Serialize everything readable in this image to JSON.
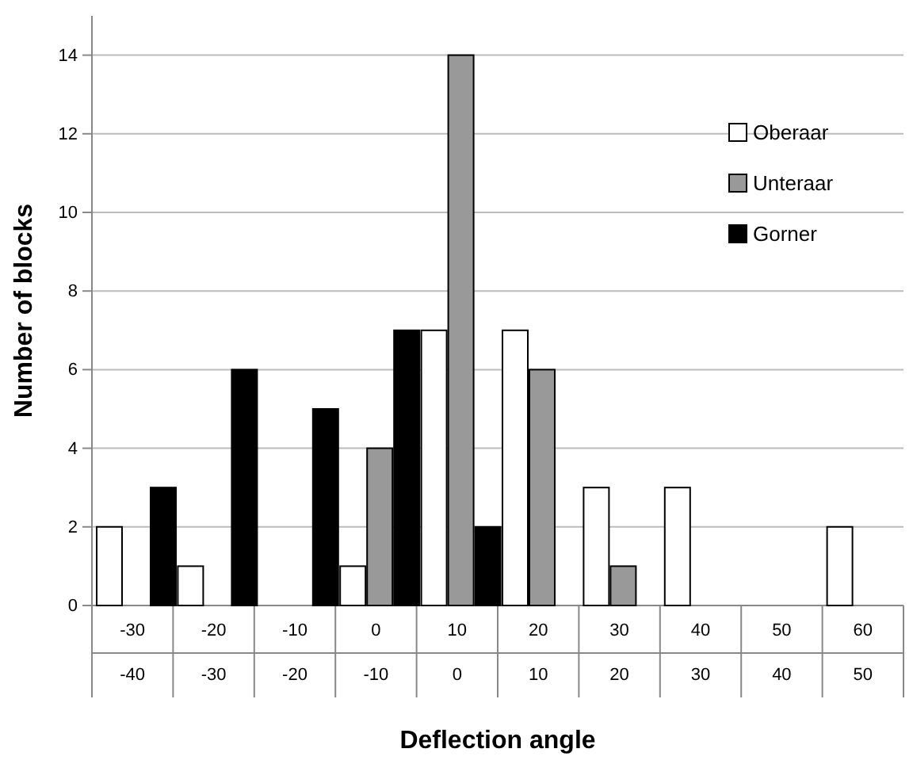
{
  "chart_data": {
    "type": "bar",
    "xlabel": "Deflection angle",
    "ylabel": "Number of blocks",
    "categories": [
      "-30\n-40",
      "-20\n-30",
      "-10\n-20",
      "0\n-10",
      "10\n0",
      "20\n10",
      "30\n20",
      "40\n30",
      "50\n40",
      "60\n50"
    ],
    "series": [
      {
        "name": "Oberaar",
        "color": "#ffffff",
        "values": [
          2,
          1,
          0,
          1,
          7,
          7,
          3,
          3,
          0,
          2
        ]
      },
      {
        "name": "Unteraar",
        "color": "#999999",
        "values": [
          0,
          0,
          0,
          4,
          14,
          6,
          1,
          0,
          0,
          0
        ]
      },
      {
        "name": "Gorner",
        "color": "#000000",
        "values": [
          3,
          6,
          5,
          7,
          2,
          0,
          0,
          0,
          0,
          0
        ]
      }
    ],
    "ylim": [
      0,
      15
    ],
    "yticks": [
      0,
      2,
      4,
      6,
      8,
      10,
      12,
      14
    ],
    "grid": "y",
    "legend": "top right"
  }
}
